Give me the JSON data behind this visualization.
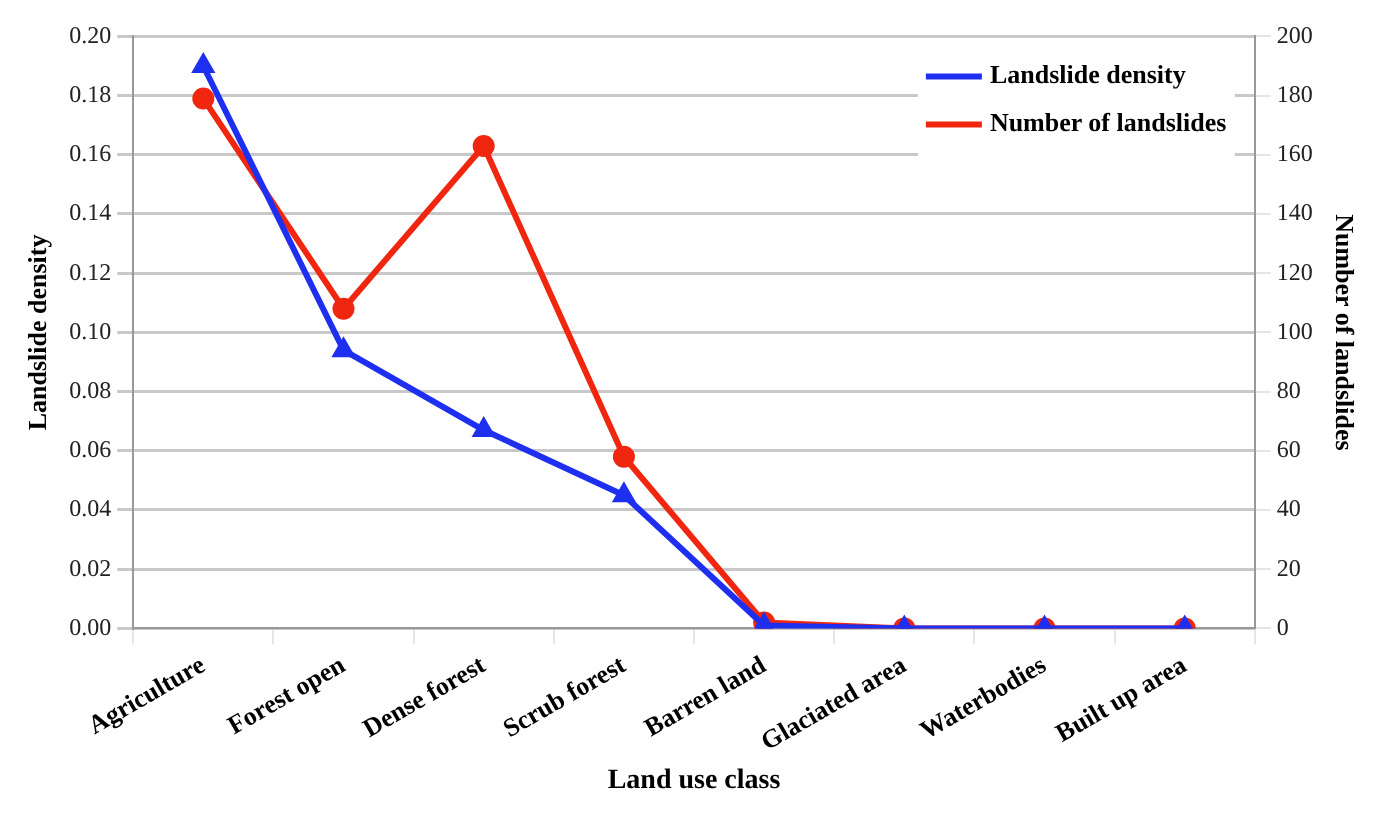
{
  "chart_data": {
    "type": "line",
    "xlabel": "Land use class",
    "ylabel": "Landslide density",
    "y2label": "Number of landslides",
    "categories": [
      "Agriculture",
      "Forest open",
      "Dense forest",
      "Scrub forest",
      "Barren land",
      "Glaciated area",
      "Waterbodies",
      "Built up area"
    ],
    "series": [
      {
        "name": "Landslide density",
        "color": "#1f2ff0",
        "marker": "triangle",
        "values": [
          0.19,
          0.094,
          0.067,
          0.045,
          0.001,
          0,
          0,
          0
        ]
      },
      {
        "name": "Number of landslides",
        "color": "#f0260f",
        "marker": "circle",
        "axis": "y2",
        "values": [
          179,
          108,
          163,
          58,
          2,
          0,
          0,
          0
        ]
      }
    ],
    "ylim": [
      0,
      0.2
    ],
    "yticks": [
      {
        "value": 0,
        "label": "0.00"
      },
      {
        "value": 0.02,
        "label": "0.02"
      },
      {
        "value": 0.04,
        "label": "0.04"
      },
      {
        "value": 0.06,
        "label": "0.06"
      },
      {
        "value": 0.08,
        "label": "0.08"
      },
      {
        "value": 0.1,
        "label": "0.10"
      },
      {
        "value": 0.12,
        "label": "0.12"
      },
      {
        "value": 0.14,
        "label": "0.14"
      },
      {
        "value": 0.16,
        "label": "0.16"
      },
      {
        "value": 0.18,
        "label": "0.18"
      },
      {
        "value": 0.2,
        "label": "0.20"
      }
    ],
    "y2lim": [
      0,
      200
    ],
    "y2ticks": [
      0,
      20,
      40,
      60,
      80,
      100,
      120,
      140,
      160,
      180,
      200
    ],
    "grid": "y",
    "legend": "top right"
  }
}
